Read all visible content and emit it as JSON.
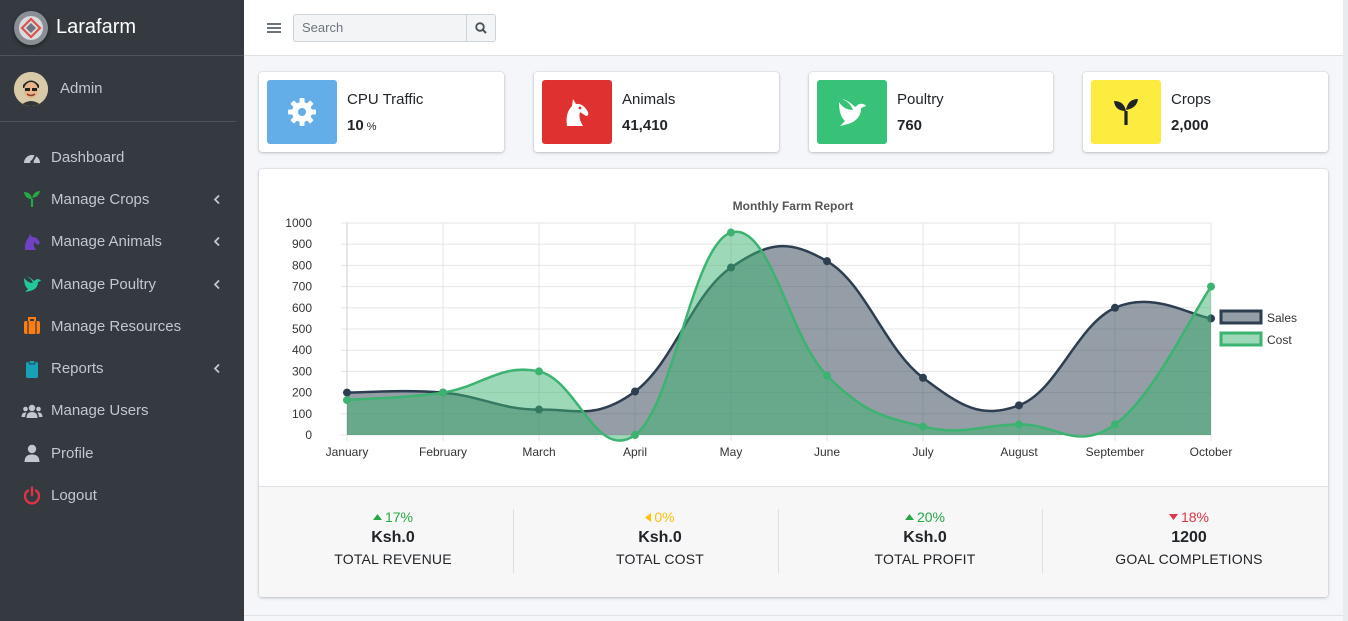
{
  "brand": {
    "name": "Larafarm"
  },
  "user": {
    "name": "Admin"
  },
  "nav": [
    {
      "label": "Dashboard",
      "icon": "dashboard-icon",
      "color": "#c2c7d0",
      "caret": false
    },
    {
      "label": "Manage Crops",
      "icon": "seedling-icon",
      "color": "#28a745",
      "caret": true
    },
    {
      "label": "Manage Animals",
      "icon": "horse-icon",
      "color": "#6f42c1",
      "caret": true
    },
    {
      "label": "Manage Poultry",
      "icon": "dove-icon",
      "color": "#20c997",
      "caret": true
    },
    {
      "label": "Manage Resources",
      "icon": "toolbox-icon",
      "color": "#fd7e14",
      "caret": false
    },
    {
      "label": "Reports",
      "icon": "clipboard-icon",
      "color": "#17a2b8",
      "caret": true
    },
    {
      "label": "Manage Users",
      "icon": "users-icon",
      "color": "#c2c7d0",
      "caret": false
    },
    {
      "label": "Profile",
      "icon": "user-icon",
      "color": "#c2c7d0",
      "caret": false
    },
    {
      "label": "Logout",
      "icon": "power-icon",
      "color": "#dc3545",
      "caret": false
    }
  ],
  "topbar": {
    "search_placeholder": "Search"
  },
  "info_boxes": [
    {
      "title": "CPU Traffic",
      "value": "10",
      "unit": "%",
      "icon": "cog-icon",
      "color": "#63aee8"
    },
    {
      "title": "Animals",
      "value": "41,410",
      "unit": "",
      "icon": "horse-head-icon",
      "color": "#e03131"
    },
    {
      "title": "Poultry",
      "value": "760",
      "unit": "",
      "icon": "dove-icon",
      "color": "#37c277"
    },
    {
      "title": "Crops",
      "value": "2,000",
      "unit": "",
      "icon": "seedling-icon",
      "color": "#fbec3f"
    }
  ],
  "chart_data": {
    "type": "area",
    "title": "Monthly Farm Report",
    "categories": [
      "January",
      "February",
      "March",
      "April",
      "May",
      "June",
      "July",
      "August",
      "September",
      "October"
    ],
    "series": [
      {
        "name": "Sales",
        "values": [
          200,
          200,
          120,
          205,
          790,
          820,
          270,
          140,
          600,
          550
        ],
        "color": "#2c3e50"
      },
      {
        "name": "Cost",
        "values": [
          165,
          200,
          300,
          0,
          955,
          280,
          40,
          50,
          50,
          700
        ],
        "color": "#3cb371"
      }
    ],
    "ylim": [
      0,
      1000
    ],
    "yticks": [
      "0",
      "100",
      "200",
      "300",
      "400",
      "500",
      "600",
      "700",
      "800",
      "900",
      "1000"
    ],
    "grid": true,
    "legend": "right"
  },
  "stats": [
    {
      "pct": "17%",
      "dir": "up",
      "color": "#28a745",
      "value": "Ksh.0",
      "label": "TOTAL REVENUE"
    },
    {
      "pct": "0%",
      "dir": "left",
      "color": "#ffc107",
      "value": "Ksh.0",
      "label": "TOTAL COST"
    },
    {
      "pct": "20%",
      "dir": "up",
      "color": "#28a745",
      "value": "Ksh.0",
      "label": "TOTAL PROFIT"
    },
    {
      "pct": "18%",
      "dir": "down",
      "color": "#dc3545",
      "value": "1200",
      "label": "GOAL COMPLETIONS"
    }
  ]
}
